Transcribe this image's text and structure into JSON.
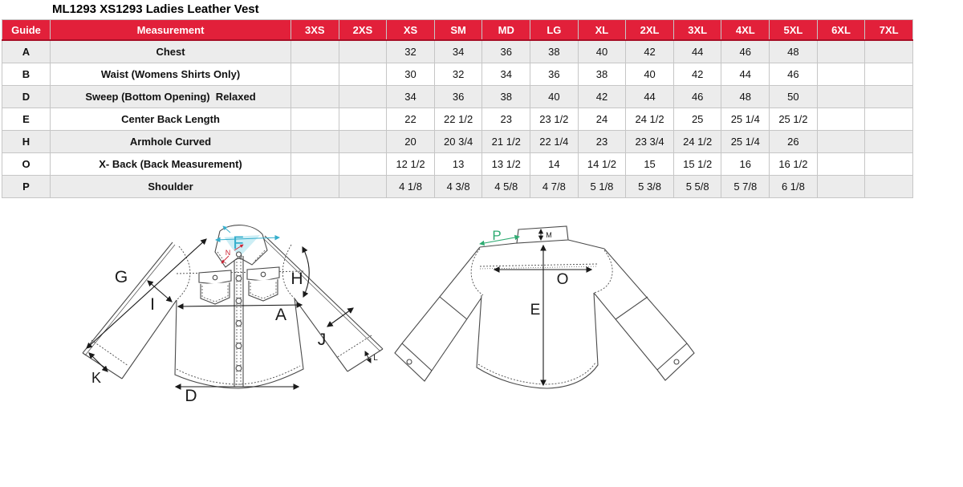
{
  "page": {
    "title": "ML1293 XS1293 Ladies Leather Vest"
  },
  "table": {
    "columns": [
      "Guide",
      "Measurement",
      "3XS",
      "2XS",
      "XS",
      "SM",
      "MD",
      "LG",
      "XL",
      "2XL",
      "3XL",
      "4XL",
      "5XL",
      "6XL",
      "7XL"
    ],
    "rows": [
      {
        "guide": "A",
        "measurement": "Chest",
        "values": [
          "",
          "",
          "32",
          "34",
          "36",
          "38",
          "40",
          "42",
          "44",
          "46",
          "48",
          "",
          ""
        ]
      },
      {
        "guide": "B",
        "measurement": "Waist (Womens Shirts Only)",
        "values": [
          "",
          "",
          "30",
          "32",
          "34",
          "36",
          "38",
          "40",
          "42",
          "44",
          "46",
          "",
          ""
        ]
      },
      {
        "guide": "D",
        "measurement": "Sweep (Bottom Opening)  Relaxed",
        "values": [
          "",
          "",
          "34",
          "36",
          "38",
          "40",
          "42",
          "44",
          "46",
          "48",
          "50",
          "",
          ""
        ]
      },
      {
        "guide": "E",
        "measurement": "Center Back Length",
        "values": [
          "",
          "",
          "22",
          "22 1/2",
          "23",
          "23 1/2",
          "24",
          "24 1/2",
          "25",
          "25 1/4",
          "25 1/2",
          "",
          ""
        ]
      },
      {
        "guide": "H",
        "measurement": "Armhole Curved",
        "values": [
          "",
          "",
          "20",
          "20 3/4",
          "21 1/2",
          "22 1/4",
          "23",
          "23 3/4",
          "24 1/2",
          "25 1/4",
          "26",
          "",
          ""
        ]
      },
      {
        "guide": "O",
        "measurement": "X- Back (Back Measurement)",
        "values": [
          "",
          "",
          "12 1/2",
          "13",
          "13 1/2",
          "14",
          "14 1/2",
          "15",
          "15 1/2",
          "16",
          "16 1/2",
          "",
          ""
        ]
      },
      {
        "guide": "P",
        "measurement": "Shoulder",
        "values": [
          "",
          "",
          "4 1/8",
          "4 3/8",
          "4 5/8",
          "4 7/8",
          "5 1/8",
          "5 3/8",
          "5 5/8",
          "5 7/8",
          "6 1/8",
          "",
          ""
        ]
      }
    ]
  },
  "diagram": {
    "front": {
      "labels": {
        "collar_f": "F",
        "neck_n": "N",
        "sleeve_g": "G",
        "armhole_i": "I",
        "armhole_h": "H",
        "chest_a": "A",
        "forearm_j": "J",
        "cuff_k": "K",
        "cuff_l": "L",
        "sweep_d": "D"
      }
    },
    "back": {
      "labels": {
        "shoulder_p": "P",
        "collar_m": "M",
        "xback_o": "O",
        "length_e": "E"
      }
    }
  },
  "colors": {
    "header_bg": "#E2203A",
    "header_border": "#A80E26",
    "row_alt": "#ECECEC",
    "grid_line": "#C6C6C6",
    "accent_cyan": "#35AECC",
    "accent_green": "#2EAB72",
    "accent_red": "#CC2233"
  }
}
